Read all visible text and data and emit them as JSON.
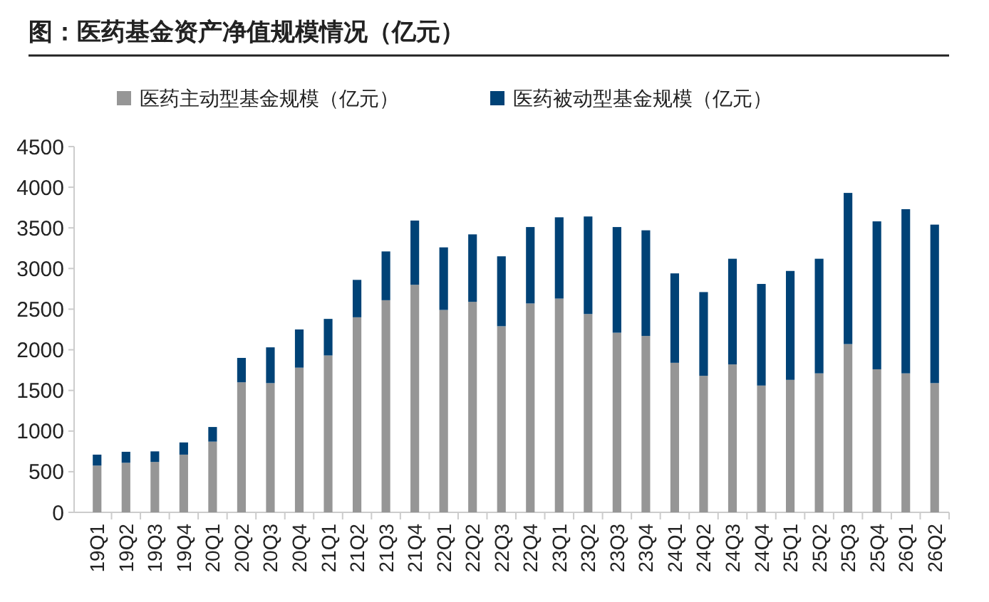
{
  "chart_data": {
    "type": "bar",
    "title": "图：医药基金资产净值规模情况（亿元）",
    "stacked": true,
    "legend": "top",
    "grid": false,
    "categories": [
      "19Q1",
      "19Q2",
      "19Q3",
      "19Q4",
      "20Q1",
      "20Q2",
      "20Q3",
      "20Q4",
      "21Q1",
      "21Q2",
      "21Q3",
      "21Q4",
      "22Q1",
      "22Q2",
      "22Q3",
      "22Q4",
      "23Q1",
      "23Q2",
      "23Q3",
      "23Q4",
      "24Q1",
      "24Q2",
      "24Q3",
      "24Q4",
      "25Q1",
      "25Q2",
      "25Q3",
      "25Q4",
      "26Q1",
      "26Q2"
    ],
    "series": [
      {
        "name": "医药主动型基金规模（亿元）",
        "color": "#969696",
        "values": [
          575,
          610,
          620,
          710,
          870,
          1600,
          1590,
          1780,
          1930,
          2400,
          2610,
          2800,
          2490,
          2590,
          2290,
          2570,
          2630,
          2440,
          2210,
          2170,
          1840,
          1680,
          1820,
          1560,
          1630,
          1710,
          2070,
          1760,
          1710,
          1590
        ]
      },
      {
        "name": "医药被动型基金规模（亿元）",
        "color": "#004276",
        "values": [
          135,
          135,
          130,
          150,
          180,
          300,
          440,
          470,
          450,
          460,
          600,
          790,
          770,
          830,
          860,
          940,
          1000,
          1200,
          1300,
          1300,
          1100,
          1030,
          1300,
          1250,
          1340,
          1410,
          1860,
          1820,
          2020,
          1950
        ]
      }
    ],
    "ylim": [
      0,
      4500
    ],
    "yticks": [
      0,
      500,
      1000,
      1500,
      2000,
      2500,
      3000,
      3500,
      4000,
      4500
    ]
  }
}
